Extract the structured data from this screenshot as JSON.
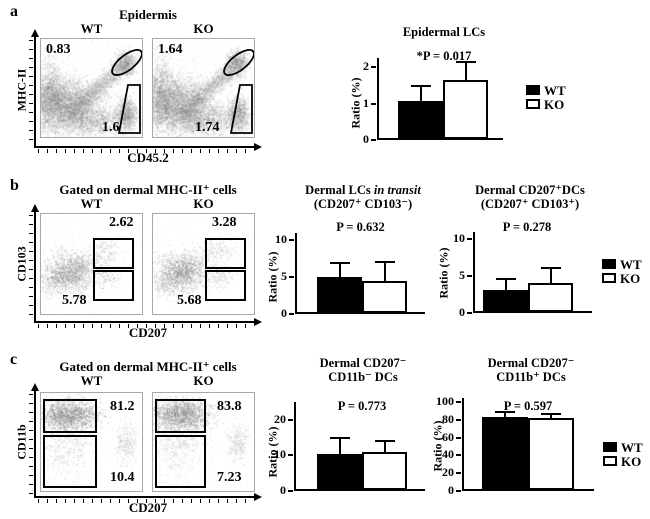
{
  "figure_legend": {
    "wt": "WT",
    "ko": "KO"
  },
  "panel_a": {
    "label": "a",
    "title": "Epidermis",
    "flow": {
      "wt": "WT",
      "ko": "KO",
      "xlabel": "CD45.2",
      "ylabel": "MHC-II",
      "wt_top_gate": "0.83",
      "wt_bottom_gate": "1.6",
      "ko_top_gate": "1.64",
      "ko_bottom_gate": "1.74"
    }
  },
  "panel_b": {
    "label": "b",
    "title": "Gated on dermal MHC-II⁺ cells",
    "flow": {
      "wt": "WT",
      "ko": "KO",
      "xlabel": "CD207",
      "ylabel": "CD103",
      "wt_top_gate": "2.62",
      "wt_bottom_gate": "5.78",
      "ko_top_gate": "3.28",
      "ko_bottom_gate": "5.68"
    }
  },
  "panel_c": {
    "label": "c",
    "title": "Gated on dermal MHC-II⁺ cells",
    "flow": {
      "wt": "WT",
      "ko": "KO",
      "xlabel": "CD207",
      "ylabel": "CD11b",
      "wt_top_gate": "81.2",
      "wt_bottom_gate": "10.4",
      "ko_top_gate": "83.8",
      "ko_bottom_gate": "7.23"
    }
  },
  "colors": {
    "bar_wt": "#000000",
    "bar_ko": "#ffffff",
    "scatter_gray": "#7d7d7d",
    "frame_gray": "#a8a8a8"
  },
  "chart_data": [
    {
      "type": "bar",
      "title": "Epidermal LCs",
      "stat": "*P = 0.017",
      "ylabel": "Ratio (%)",
      "categories": [
        "WT",
        "KO"
      ],
      "values": [
        1.05,
        1.63
      ],
      "errors_plus": [
        0.38,
        0.45
      ],
      "yticks": [
        0,
        1,
        2
      ],
      "ylim": [
        0,
        2.25
      ],
      "legend": [
        "WT",
        "KO"
      ],
      "legend_position": "right",
      "bar_colors": [
        "#000000",
        "#ffffff"
      ]
    },
    {
      "type": "bar",
      "title": "Dermal LCs in transit",
      "title_main": "Dermal LCs",
      "title_italic": "in transit",
      "subtitle": "(CD207⁺ CD103⁻)",
      "stat": "P = 0.632",
      "ylabel": "Ratio (%)",
      "categories": [
        "WT",
        "KO"
      ],
      "values": [
        4.9,
        4.3
      ],
      "errors_plus": [
        1.8,
        2.5
      ],
      "yticks": [
        0,
        5,
        10
      ],
      "ylim": [
        0,
        11
      ],
      "bar_colors": [
        "#000000",
        "#ffffff"
      ]
    },
    {
      "type": "bar",
      "title": "Dermal CD207⁺DCs",
      "subtitle": "(CD207⁺ CD103⁺)",
      "stat": "P = 0.278",
      "ylabel": "Ratio (%)",
      "categories": [
        "WT",
        "KO"
      ],
      "values": [
        3.0,
        3.9
      ],
      "errors_plus": [
        1.3,
        2.0
      ],
      "yticks": [
        0,
        5,
        10
      ],
      "ylim": [
        0,
        11
      ],
      "legend": [
        "WT",
        "KO"
      ],
      "legend_position": "right",
      "bar_colors": [
        "#000000",
        "#ffffff"
      ]
    },
    {
      "type": "bar",
      "title": "Dermal CD207⁻",
      "title_line2": "CD11b⁻ DCs",
      "stat": "P = 0.773",
      "ylabel": "Ratio (%)",
      "categories": [
        "WT",
        "KO"
      ],
      "values": [
        10.2,
        10.6
      ],
      "errors_plus": [
        4.1,
        2.9
      ],
      "yticks": [
        0,
        10,
        20
      ],
      "ylim": [
        0,
        25
      ],
      "bar_colors": [
        "#000000",
        "#ffffff"
      ]
    },
    {
      "type": "bar",
      "title": "Dermal CD207⁻",
      "title_line2": "CD11b⁺ DCs",
      "stat": "P = 0.597",
      "ylabel": "Ratio (%)",
      "categories": [
        "WT",
        "KO"
      ],
      "values": [
        82,
        81
      ],
      "errors_plus": [
        4,
        3
      ],
      "yticks": [
        0,
        20,
        40,
        60,
        80,
        100
      ],
      "ylim": [
        0,
        104.5
      ],
      "legend": [
        "WT",
        "KO"
      ],
      "legend_position": "right",
      "bar_colors": [
        "#000000",
        "#ffffff"
      ]
    }
  ]
}
